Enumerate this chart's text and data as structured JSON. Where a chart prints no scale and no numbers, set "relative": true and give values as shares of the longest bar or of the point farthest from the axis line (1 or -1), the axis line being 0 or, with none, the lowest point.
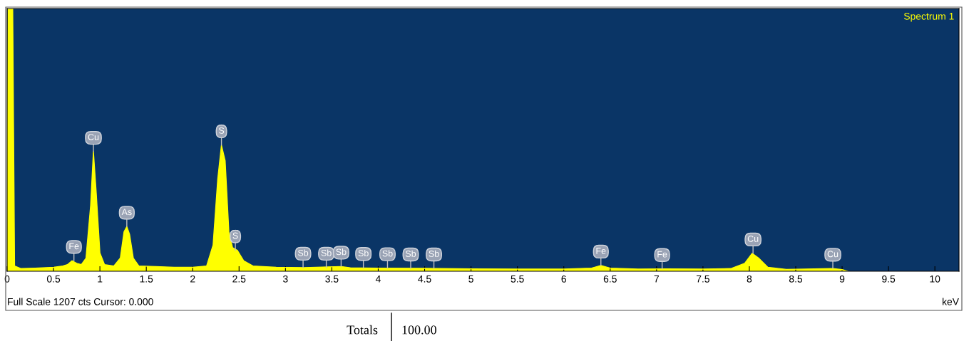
{
  "chart_data": {
    "type": "area",
    "relative": true,
    "title": "Spectrum 1",
    "xlabel": "keV",
    "x": [
      0,
      0.01,
      0.06,
      0.08,
      0.15,
      0.3,
      0.5,
      0.6,
      0.65,
      0.7,
      0.75,
      0.8,
      0.85,
      0.9,
      0.93,
      0.96,
      1.0,
      1.05,
      1.15,
      1.22,
      1.26,
      1.29,
      1.32,
      1.36,
      1.42,
      1.6,
      1.8,
      2.0,
      2.15,
      2.22,
      2.27,
      2.31,
      2.35,
      2.39,
      2.43,
      2.48,
      2.55,
      2.65,
      2.9,
      3.2,
      3.6,
      3.7,
      4.0,
      4.5,
      5.0,
      5.5,
      6.0,
      6.3,
      6.4,
      6.5,
      6.8,
      7.1,
      7.5,
      7.8,
      7.95,
      8.03,
      8.1,
      8.2,
      8.4,
      8.9,
      9.0,
      9.06
    ],
    "series": [
      {
        "color": "#ffff00",
        "values": [
          0,
          1,
          1,
          0.02,
          0.01,
          0.012,
          0.015,
          0.02,
          0.025,
          0.04,
          0.03,
          0.025,
          0.05,
          0.25,
          0.455,
          0.3,
          0.07,
          0.025,
          0.02,
          0.05,
          0.15,
          0.17,
          0.14,
          0.05,
          0.02,
          0.018,
          0.015,
          0.015,
          0.02,
          0.1,
          0.35,
          0.48,
          0.42,
          0.15,
          0.09,
          0.08,
          0.04,
          0.02,
          0.015,
          0.014,
          0.018,
          0.013,
          0.012,
          0.011,
          0.009,
          0.008,
          0.008,
          0.012,
          0.022,
          0.012,
          0.008,
          0.009,
          0.008,
          0.01,
          0.03,
          0.068,
          0.05,
          0.015,
          0.007,
          0.01,
          0.006,
          0
        ]
      }
    ],
    "xlim": [
      0,
      10.26
    ],
    "xticks": [
      0,
      0.5,
      1,
      1.5,
      2,
      2.5,
      3,
      3.5,
      4,
      4.5,
      5,
      5.5,
      6,
      6.5,
      7,
      7.5,
      8,
      8.5,
      9,
      9.5,
      10
    ],
    "grid": false,
    "annotations": [
      {
        "text": "Fe",
        "x": 0.72,
        "y": 0.04
      },
      {
        "text": "Cu",
        "x": 0.93,
        "y": 0.455
      },
      {
        "text": "As",
        "x": 1.29,
        "y": 0.17
      },
      {
        "text": "S",
        "x": 2.31,
        "y": 0.48
      },
      {
        "text": "S",
        "x": 2.46,
        "y": 0.08
      },
      {
        "text": "Sb",
        "x": 3.19,
        "y": 0.014
      },
      {
        "text": "Sb",
        "x": 3.44,
        "y": 0.014
      },
      {
        "text": "Sb",
        "x": 3.6,
        "y": 0.018
      },
      {
        "text": "Sb",
        "x": 3.84,
        "y": 0.013
      },
      {
        "text": "Sb",
        "x": 4.1,
        "y": 0.012
      },
      {
        "text": "Sb",
        "x": 4.35,
        "y": 0.011
      },
      {
        "text": "Sb",
        "x": 4.6,
        "y": 0.011
      },
      {
        "text": "Fe",
        "x": 6.4,
        "y": 0.022
      },
      {
        "text": "Fe",
        "x": 7.06,
        "y": 0.009
      },
      {
        "text": "Cu",
        "x": 8.04,
        "y": 0.068
      },
      {
        "text": "Cu",
        "x": 8.9,
        "y": 0.01
      },
      "Full Scale 1207 cts Cursor: 0.000",
      "Totals",
      "100.00"
    ]
  }
}
